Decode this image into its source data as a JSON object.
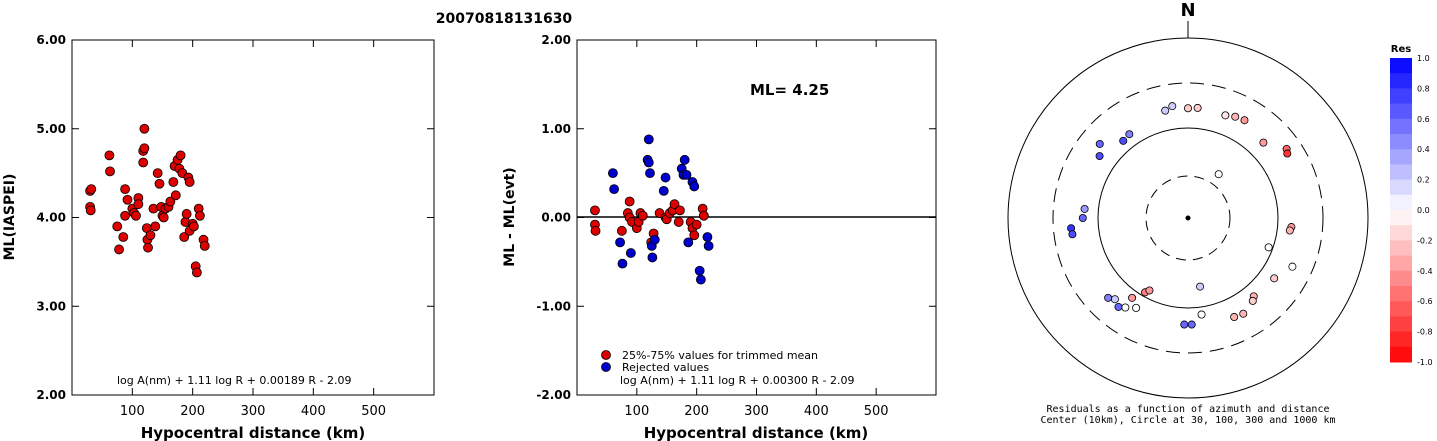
{
  "event_id": "20070818131630",
  "left_chart": {
    "ylabel": "ML(IASPEI)",
    "xlabel": "Hypocentral distance (km)",
    "formula": "log A(nm) + 1.11 log R + 0.00189 R - 2.09",
    "yticks": [
      "2.00",
      "3.00",
      "4.00",
      "5.00",
      "6.00"
    ],
    "xticks": [
      "100",
      "200",
      "300",
      "400",
      "500"
    ]
  },
  "middle_chart": {
    "ylabel": "ML - ML(evt)",
    "xlabel": "Hypocentral distance (km)",
    "formula": "log A(nm) + 1.11 log R + 0.00300 R - 2.09",
    "ml_label": "ML= 4.25",
    "legend_used": "25%-75% values for trimmed mean",
    "legend_rejected": "Rejected values",
    "yticks": [
      "-2.00",
      "-1.00",
      "0.00",
      "1.00",
      "2.00"
    ],
    "xticks": [
      "100",
      "200",
      "300",
      "400",
      "500"
    ]
  },
  "polar": {
    "north_label": "N",
    "caption_line1": "Residuals as a function of azimuth and distance",
    "caption_line2": "Center (10km), Circle at 30, 100, 300 and 1000 km"
  },
  "colorbar": {
    "title": "Res",
    "labels": [
      "1.0",
      "0.8",
      "0.6",
      "0.4",
      "0.2",
      "0.0",
      "-0.2",
      "-0.4",
      "-0.6",
      "-0.8",
      "-1.0"
    ]
  },
  "colors": {
    "used": "#dd0000",
    "rejected": "#0000cc",
    "positive_max": "#0000ff",
    "negative_max": "#ff0000"
  },
  "chart_data": [
    {
      "type": "scatter",
      "ylabel": "ML(IASPEI)",
      "xlabel": "Hypocentral distance (km)",
      "xlim": [
        0,
        600
      ],
      "ylim": [
        2.0,
        6.0
      ],
      "points": [
        [
          30,
          4.3
        ],
        [
          30,
          4.12
        ],
        [
          31,
          4.08
        ],
        [
          32,
          4.32
        ],
        [
          62,
          4.7
        ],
        [
          63,
          4.52
        ],
        [
          75,
          3.9
        ],
        [
          78,
          3.64
        ],
        [
          85,
          3.78
        ],
        [
          88,
          4.32
        ],
        [
          88,
          4.02
        ],
        [
          92,
          4.2
        ],
        [
          100,
          4.1
        ],
        [
          103,
          4.05
        ],
        [
          106,
          4.02
        ],
        [
          110,
          4.22
        ],
        [
          110,
          4.15
        ],
        [
          118,
          4.75
        ],
        [
          118,
          4.62
        ],
        [
          120,
          5.0
        ],
        [
          120,
          4.78
        ],
        [
          124,
          3.88
        ],
        [
          125,
          3.75
        ],
        [
          126,
          3.66
        ],
        [
          130,
          3.8
        ],
        [
          135,
          4.1
        ],
        [
          138,
          3.9
        ],
        [
          142,
          4.5
        ],
        [
          145,
          4.38
        ],
        [
          148,
          4.12
        ],
        [
          150,
          4.02
        ],
        [
          152,
          4.0
        ],
        [
          155,
          4.1
        ],
        [
          160,
          4.12
        ],
        [
          163,
          4.18
        ],
        [
          168,
          4.4
        ],
        [
          170,
          4.58
        ],
        [
          172,
          4.25
        ],
        [
          175,
          4.65
        ],
        [
          178,
          4.55
        ],
        [
          180,
          4.7
        ],
        [
          183,
          4.5
        ],
        [
          186,
          3.78
        ],
        [
          188,
          3.95
        ],
        [
          190,
          4.04
        ],
        [
          193,
          4.45
        ],
        [
          195,
          3.85
        ],
        [
          195,
          4.4
        ],
        [
          200,
          3.93
        ],
        [
          202,
          3.9
        ],
        [
          205,
          3.45
        ],
        [
          207,
          3.38
        ],
        [
          210,
          4.1
        ],
        [
          212,
          4.02
        ],
        [
          218,
          3.75
        ],
        [
          220,
          3.68
        ]
      ]
    },
    {
      "type": "scatter",
      "ylabel": "ML - ML(evt)",
      "xlabel": "Hypocentral distance (km)",
      "xlim": [
        0,
        600
      ],
      "ylim": [
        -2.0,
        2.0
      ],
      "reference_line": 0.0,
      "series": [
        {
          "name": "25%-75% values for trimmed mean",
          "points": [
            [
              30,
              0.08
            ],
            [
              30,
              -0.08
            ],
            [
              31,
              -0.15
            ],
            [
              75,
              -0.15
            ],
            [
              85,
              0.05
            ],
            [
              88,
              0.18
            ],
            [
              88,
              0.0
            ],
            [
              92,
              -0.05
            ],
            [
              100,
              -0.12
            ],
            [
              103,
              -0.05
            ],
            [
              106,
              0.05
            ],
            [
              110,
              0.02
            ],
            [
              124,
              -0.28
            ],
            [
              128,
              -0.18
            ],
            [
              138,
              0.05
            ],
            [
              148,
              0.0
            ],
            [
              150,
              -0.02
            ],
            [
              155,
              0.05
            ],
            [
              160,
              0.08
            ],
            [
              163,
              0.15
            ],
            [
              170,
              -0.05
            ],
            [
              172,
              0.08
            ],
            [
              190,
              -0.05
            ],
            [
              193,
              -0.12
            ],
            [
              196,
              -0.2
            ],
            [
              200,
              -0.08
            ],
            [
              210,
              0.1
            ],
            [
              212,
              0.02
            ]
          ]
        },
        {
          "name": "Rejected values",
          "points": [
            [
              60,
              0.5
            ],
            [
              62,
              0.32
            ],
            [
              72,
              -0.28
            ],
            [
              76,
              -0.52
            ],
            [
              90,
              -0.4
            ],
            [
              118,
              0.65
            ],
            [
              120,
              0.88
            ],
            [
              120,
              0.62
            ],
            [
              122,
              0.5
            ],
            [
              125,
              -0.32
            ],
            [
              126,
              -0.45
            ],
            [
              130,
              -0.25
            ],
            [
              145,
              0.3
            ],
            [
              148,
              0.45
            ],
            [
              175,
              0.55
            ],
            [
              178,
              0.48
            ],
            [
              180,
              0.65
            ],
            [
              183,
              0.48
            ],
            [
              186,
              -0.28
            ],
            [
              193,
              0.4
            ],
            [
              196,
              0.35
            ],
            [
              205,
              -0.6
            ],
            [
              207,
              -0.7
            ],
            [
              218,
              -0.22
            ],
            [
              220,
              -0.32
            ]
          ]
        }
      ]
    },
    {
      "type": "scatter",
      "subtype": "polar",
      "rings_km": [
        30,
        100,
        300,
        1000
      ],
      "center_km": 10,
      "points_az_dist_res": [
        [
          20,
          160,
          -0.1
        ],
        [
          25,
          170,
          -0.3
        ],
        [
          348,
          162,
          0.2
        ],
        [
          352,
          175,
          0.2
        ],
        [
          5,
          165,
          -0.2
        ],
        [
          0,
          162,
          -0.2
        ],
        [
          30,
          175,
          -0.4
        ],
        [
          45,
          150,
          -0.4
        ],
        [
          55,
          210,
          -0.6
        ],
        [
          57,
          200,
          -0.8
        ],
        [
          95,
          140,
          -0.4
        ],
        [
          97,
          136,
          -0.3
        ],
        [
          35,
          40,
          0.0
        ],
        [
          110,
          90,
          0.0
        ],
        [
          115,
          185,
          0.0
        ],
        [
          125,
          145,
          -0.2
        ],
        [
          140,
          135,
          -0.3
        ],
        [
          142,
          145,
          -0.2
        ],
        [
          150,
          165,
          -0.3
        ],
        [
          155,
          160,
          -0.3
        ],
        [
          172,
          120,
          0.0
        ],
        [
          178,
          150,
          0.6
        ],
        [
          182,
          150,
          0.6
        ],
        [
          210,
          140,
          0.0
        ],
        [
          215,
          160,
          0.0
        ],
        [
          222,
          160,
          0.2
        ],
        [
          218,
          175,
          0.6
        ],
        [
          225,
          175,
          0.5
        ],
        [
          215,
          120,
          -0.4
        ],
        [
          210,
          90,
          -0.5
        ],
        [
          208,
          82,
          -0.4
        ],
        [
          170,
          60,
          0.2
        ],
        [
          270,
          145,
          0.6
        ],
        [
          265,
          195,
          0.8
        ],
        [
          262,
          192,
          0.7
        ],
        [
          275,
          140,
          0.4
        ],
        [
          305,
          155,
          0.7
        ],
        [
          310,
          185,
          0.6
        ],
        [
          320,
          130,
          0.7
        ],
        [
          325,
          135,
          0.5
        ]
      ]
    }
  ]
}
